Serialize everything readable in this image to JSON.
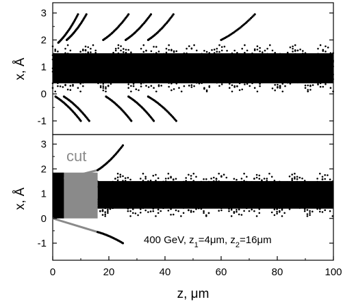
{
  "chart_data": [
    {
      "panel": "top",
      "type": "scatter",
      "ylabel": "x, Å",
      "xlim": [
        0,
        100
      ],
      "ylim": [
        -1.4,
        3.3
      ],
      "yticks": [
        "-1",
        "0",
        "1",
        "2",
        "3"
      ],
      "channel_band": {
        "x_range": [
          0,
          100
        ],
        "y_min": 0.05,
        "y_max": 1.85
      },
      "dechanneled_tracks": [
        {
          "points": [
            [
              2,
              1.9
            ],
            [
              9,
              2.95
            ]
          ]
        },
        {
          "points": [
            [
              5,
              2.0
            ],
            [
              12,
              2.95
            ]
          ]
        },
        {
          "points": [
            [
              18,
              2.0
            ],
            [
              27,
              2.95
            ]
          ]
        },
        {
          "points": [
            [
              26,
              2.0
            ],
            [
              35,
              2.95
            ]
          ]
        },
        {
          "points": [
            [
              34,
              2.0
            ],
            [
              43,
              2.95
            ]
          ]
        },
        {
          "points": [
            [
              60,
              2.0
            ],
            [
              72,
              2.95
            ]
          ]
        },
        {
          "points": [
            [
              1,
              -0.1
            ],
            [
              10,
              -1.0
            ]
          ]
        },
        {
          "points": [
            [
              4,
              -0.1
            ],
            [
              13,
              -1.0
            ]
          ]
        },
        {
          "points": [
            [
              19,
              -0.1
            ],
            [
              28,
              -1.0
            ]
          ]
        },
        {
          "points": [
            [
              27,
              -0.1
            ],
            [
              36,
              -1.0
            ]
          ]
        },
        {
          "points": [
            [
              34,
              -0.1
            ],
            [
              44,
              -1.0
            ]
          ]
        }
      ]
    },
    {
      "panel": "bottom",
      "type": "scatter",
      "xlabel": "z, μm",
      "ylabel": "x, Å",
      "xlim": [
        0,
        100
      ],
      "ylim": [
        -1.4,
        3.3
      ],
      "xticks": [
        "0",
        "20",
        "40",
        "60",
        "80",
        "100"
      ],
      "yticks": [
        "-1",
        "0",
        "1",
        "2",
        "3"
      ],
      "cut_region": {
        "x_range": [
          4,
          16
        ],
        "y_min": 0.0,
        "y_max": 1.85
      },
      "channel_band": {
        "x_range": [
          16,
          100
        ],
        "y_min": 0.05,
        "y_max": 1.85
      },
      "dechanneled_tracks": [
        {
          "points": [
            [
              16,
              1.95
            ],
            [
              25,
              2.95
            ]
          ]
        },
        {
          "points": [
            [
              16,
              -0.55
            ],
            [
              25,
              -1.0
            ]
          ]
        }
      ],
      "cut_label": "cut",
      "annotation": {
        "prefix": "400 GeV, z",
        "sub1": "1",
        "mid": "=4μm, z",
        "sub2": "2",
        "suffix": "=16μm"
      }
    }
  ]
}
